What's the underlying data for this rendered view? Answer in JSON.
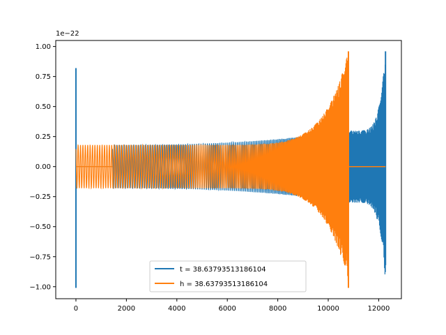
{
  "chart_data": {
    "type": "line",
    "title": "",
    "xlabel": "",
    "ylabel": "",
    "y_offset_label": "1e−22",
    "xlim": [
      -800,
      12900
    ],
    "ylim": [
      -1.1,
      1.05
    ],
    "xticks": [
      0,
      2000,
      4000,
      6000,
      8000,
      10000,
      12000
    ],
    "xtick_labels": [
      "0",
      "2000",
      "4000",
      "6000",
      "8000",
      "10000",
      "12000"
    ],
    "yticks": [
      -1.0,
      -0.75,
      -0.5,
      -0.25,
      0.0,
      0.25,
      0.5,
      0.75,
      1.0
    ],
    "ytick_labels": [
      "−1.00",
      "−0.75",
      "−0.50",
      "−0.25",
      "0.00",
      "0.25",
      "0.50",
      "0.75",
      "1.00"
    ],
    "grid": false,
    "legend_position": "lower center",
    "series": [
      {
        "name": "t = 38.63793513186104",
        "color": "#1f77b4",
        "x_start": 0,
        "x_end": 12270,
        "segments": [
          {
            "x": [
              0,
              10
            ],
            "amplitude": 0.82,
            "note": "initial spike"
          },
          {
            "x": [
              10,
              1450
            ],
            "amplitude": 0.0
          },
          {
            "x": [
              1450,
              10800
            ],
            "amplitude_start": 0.18,
            "amplitude_end": 0.62
          },
          {
            "x": [
              10800,
              12270
            ],
            "amplitude_start": 0.3,
            "amplitude_end": 0.96,
            "min_end": -1.0
          }
        ],
        "peak_max": 0.96,
        "peak_min": -1.01
      },
      {
        "name": "h = 38.63793513186104",
        "color": "#ff7f0e",
        "x_start": 0,
        "x_end": 12270,
        "segments": [
          {
            "x": [
              0,
              1450
            ],
            "amplitude": 0.18
          },
          {
            "x": [
              1450,
              10800
            ],
            "amplitude_start": 0.18,
            "amplitude_end": 0.96,
            "min_end": -1.01
          },
          {
            "x": [
              10800,
              12270
            ],
            "amplitude": 0.0
          }
        ],
        "peak_max": 0.96,
        "peak_min": -1.01
      }
    ]
  },
  "colors": {
    "series_t": "#1f77b4",
    "series_h": "#ff7f0e",
    "axes": "#000000",
    "background": "#ffffff"
  }
}
